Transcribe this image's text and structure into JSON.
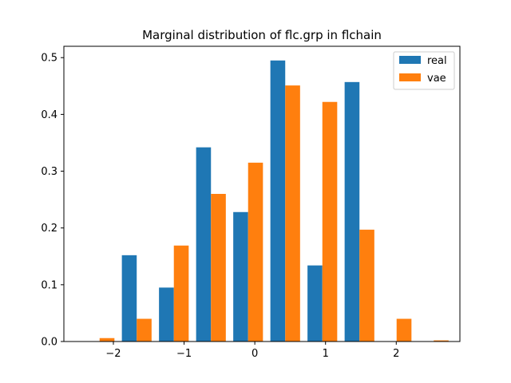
{
  "chart_data": {
    "type": "bar",
    "title": "Marginal distribution of flc.grp in flchain",
    "xlabel": "",
    "ylabel": "",
    "xlim": [
      -2.7,
      2.9
    ],
    "ylim": [
      0,
      0.52
    ],
    "xticks": [
      -2,
      -1,
      0,
      1,
      2
    ],
    "xtick_labels": [
      "−2",
      "−1",
      "0",
      "1",
      "2"
    ],
    "yticks": [
      0.0,
      0.1,
      0.2,
      0.3,
      0.4,
      0.5
    ],
    "ytick_labels": [
      "0.0",
      "0.1",
      "0.2",
      "0.3",
      "0.4",
      "0.5"
    ],
    "bar_width": 0.21,
    "grid": false,
    "legend_position": "top-right",
    "series": [
      {
        "name": "real",
        "color": "#1f77b4",
        "x": [
          -2.3,
          -1.775,
          -1.25,
          -0.725,
          -0.2,
          0.325,
          0.85,
          1.375,
          1.9,
          2.425
        ],
        "values": [
          0.0,
          0.152,
          0.095,
          0.342,
          0.228,
          0.495,
          0.134,
          0.457,
          0.0,
          0.0
        ]
      },
      {
        "name": "vae",
        "color": "#ff7f0e",
        "x": [
          -2.09,
          -1.565,
          -1.04,
          -0.515,
          0.01,
          0.535,
          1.06,
          1.585,
          2.11,
          2.635
        ],
        "values": [
          0.006,
          0.04,
          0.169,
          0.26,
          0.315,
          0.451,
          0.422,
          0.197,
          0.04,
          0.002
        ]
      }
    ]
  }
}
